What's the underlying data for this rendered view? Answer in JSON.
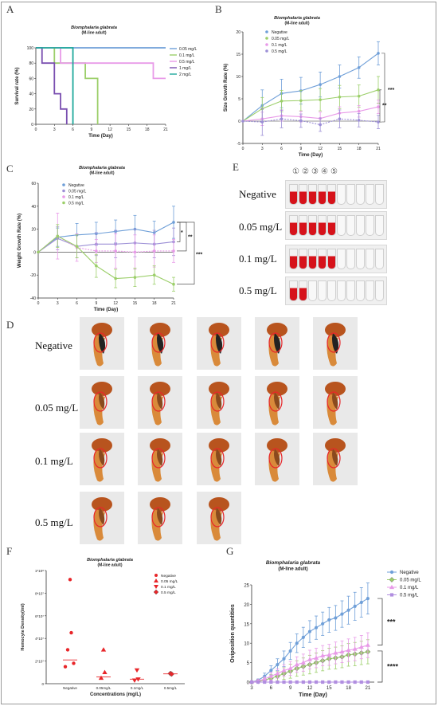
{
  "panels": {
    "A": {
      "letter": "A",
      "title": "Biomphalaria glabrata",
      "subtitle": "(M-line adult)"
    },
    "B": {
      "letter": "B",
      "title": "Biomphalaria glabrata",
      "subtitle": "(M-line adult)"
    },
    "C": {
      "letter": "C",
      "title": "Biomphalaria glabrata",
      "subtitle": "(M-line adult)"
    },
    "D": {
      "letter": "D",
      "rows": [
        "Negative",
        "0.05 mg/L",
        "0.1 mg/L",
        "0.5 mg/L"
      ]
    },
    "E": {
      "letter": "E",
      "rows": [
        "Negative",
        "0.05 mg/L",
        "0.1 mg/L",
        "0.5 mg/L"
      ],
      "tube_numbers": [
        "①",
        "②",
        "③",
        "④",
        "⑤"
      ]
    },
    "F": {
      "letter": "F",
      "title": "Biomphalaria glabrata",
      "subtitle": "(M-line adult)"
    },
    "G": {
      "letter": "G",
      "title": "Biomphalaria glabrata",
      "subtitle": "(M-line adult)"
    }
  },
  "colors": {
    "negative": "#6f9fd8",
    "c005": "#9ccf6a",
    "c01": "#e89ae8",
    "c05": "#9c8fd6",
    "red": "#e8262a",
    "teal": "#1fa89c",
    "blackish": "#333333"
  },
  "chart_data": [
    {
      "id": "A",
      "type": "line",
      "step": true,
      "xlabel": "Time (Day)",
      "ylabel": "Survival rate (%)",
      "xlim": [
        0,
        21
      ],
      "ylim": [
        0,
        100
      ],
      "xticks": [
        0,
        3,
        6,
        9,
        12,
        15,
        18,
        21
      ],
      "yticks": [
        0,
        20,
        40,
        60,
        80,
        100
      ],
      "legend": "right",
      "series": [
        {
          "name": "0.05 mg/L",
          "color": "#6f9fd8",
          "steps": [
            [
              0,
              100
            ],
            [
              21,
              100
            ]
          ]
        },
        {
          "name": "0.1 mg/L",
          "color": "#9ccf6a",
          "steps": [
            [
              0,
              100
            ],
            [
              3,
              100
            ],
            [
              3,
              80
            ],
            [
              8,
              80
            ],
            [
              8,
              60
            ],
            [
              10,
              60
            ],
            [
              10,
              0
            ]
          ]
        },
        {
          "name": "0.5 mg/L",
          "color": "#e89ae8",
          "steps": [
            [
              0,
              100
            ],
            [
              4,
              100
            ],
            [
              4,
              80
            ],
            [
              19,
              80
            ],
            [
              19,
              60
            ],
            [
              21,
              60
            ]
          ]
        },
        {
          "name": "1 mg/L",
          "color": "#7a4fb0",
          "steps": [
            [
              0,
              100
            ],
            [
              1,
              100
            ],
            [
              1,
              80
            ],
            [
              3,
              80
            ],
            [
              3,
              40
            ],
            [
              4,
              40
            ],
            [
              4,
              20
            ],
            [
              5,
              20
            ],
            [
              5,
              0
            ]
          ]
        },
        {
          "name": "2 mg/L",
          "color": "#1fa89c",
          "steps": [
            [
              0,
              100
            ],
            [
              6,
              100
            ],
            [
              6,
              0
            ]
          ]
        }
      ]
    },
    {
      "id": "B",
      "type": "line",
      "xlabel": "Time (Day)",
      "ylabel": "Size Growth Rate (%)",
      "xlim": [
        0,
        21
      ],
      "ylim": [
        -5,
        20
      ],
      "xticks": [
        0,
        3,
        6,
        9,
        12,
        15,
        18,
        21
      ],
      "yticks": [
        -5,
        0,
        5,
        10,
        15,
        20
      ],
      "legend": "top-left",
      "x": [
        0,
        3,
        6,
        9,
        12,
        15,
        18,
        21
      ],
      "series": [
        {
          "name": "Negative",
          "color": "#6f9fd8",
          "values": [
            0,
            3.5,
            6.2,
            6.8,
            8.2,
            10.0,
            12.0,
            15.2
          ],
          "err": [
            0,
            3.5,
            3.2,
            3.0,
            2.8,
            2.6,
            2.4,
            2.6
          ]
        },
        {
          "name": "0.05 mg/L",
          "color": "#9ccf6a",
          "values": [
            0,
            2.8,
            4.5,
            4.6,
            4.8,
            5.4,
            5.6,
            7.0
          ],
          "err": [
            0,
            2.5,
            2.4,
            2.3,
            2.5,
            2.6,
            2.5,
            3.0
          ]
        },
        {
          "name": "0.1 mg/L",
          "color": "#e89ae8",
          "values": [
            0,
            0.5,
            1.2,
            1.0,
            0.6,
            1.8,
            2.2,
            3.2
          ],
          "err": [
            0,
            1.5,
            1.2,
            1.2,
            1.4,
            1.4,
            1.3,
            1.5
          ]
        },
        {
          "name": "0.5 mg/L",
          "color": "#9c8fd6",
          "values": [
            0,
            -0.2,
            0.5,
            0.1,
            -0.8,
            0.5,
            0.2,
            -0.2
          ],
          "err": [
            0,
            3.0,
            2.0,
            1.5,
            1.5,
            2.0,
            1.5,
            1.5
          ]
        }
      ],
      "annotations": [
        "**",
        "***"
      ]
    },
    {
      "id": "C",
      "type": "line",
      "xlabel": "Time (Day)",
      "ylabel": "Weight Growth Rate (%)",
      "xlim": [
        0,
        21
      ],
      "ylim": [
        -40,
        60
      ],
      "xticks": [
        0,
        3,
        6,
        9,
        12,
        15,
        18,
        21
      ],
      "yticks": [
        -40,
        -20,
        0,
        20,
        40,
        60
      ],
      "legend": "top-left",
      "x": [
        0,
        3,
        6,
        9,
        12,
        15,
        18,
        21
      ],
      "series": [
        {
          "name": "Negative",
          "color": "#6f9fd8",
          "values": [
            0,
            13,
            15,
            16,
            18,
            20,
            17,
            26
          ],
          "err": [
            0,
            8,
            10,
            10,
            10,
            12,
            10,
            14
          ]
        },
        {
          "name": "0.05 mg/L",
          "color": "#9c8fd6",
          "values": [
            0,
            12,
            5,
            7,
            7,
            8,
            7,
            9
          ],
          "err": [
            0,
            10,
            10,
            10,
            12,
            12,
            12,
            12
          ]
        },
        {
          "name": "0.1 mg/L",
          "color": "#e89ae8",
          "values": [
            0,
            14,
            4,
            1,
            1,
            0,
            1,
            1
          ],
          "err": [
            0,
            20,
            12,
            10,
            15,
            15,
            14,
            10
          ]
        },
        {
          "name": "0.5 mg/L",
          "color": "#9ccf6a",
          "values": [
            0,
            14,
            5,
            -12,
            -23,
            -22,
            -20,
            -28
          ],
          "err": [
            0,
            10,
            10,
            10,
            8,
            8,
            8,
            6
          ]
        }
      ],
      "annotations": [
        "*",
        "**",
        "***"
      ]
    },
    {
      "id": "F",
      "type": "scatter",
      "xlabel": "Concentrations (mg/L)",
      "ylabel": "Hemocyte Density(/ml)",
      "categories": [
        "Negative",
        "0.05mg/L",
        "0.1mg/L",
        "0.5mg/L"
      ],
      "ylim": [
        0,
        100000000.0
      ],
      "yticks": [
        0,
        20000000.0,
        40000000.0,
        60000000.0,
        80000000.0,
        100000000.0
      ],
      "ytick_labels": [
        "0",
        "2*10⁷",
        "4*10⁷",
        "6*10⁷",
        "8*10⁷",
        "1*10⁸"
      ],
      "legend": "top-right",
      "series": [
        {
          "name": "Negative",
          "marker": "circle",
          "cat": 0,
          "points": [
            92000000.0,
            45000000.0,
            30000000.0,
            18000000.0,
            15000000.0
          ],
          "median": 21000000.0
        },
        {
          "name": "0.05 mg/L",
          "marker": "triangle-up",
          "cat": 1,
          "points": [
            30000000.0,
            10000000.0,
            5000000.0
          ],
          "median": 6000000.0
        },
        {
          "name": "0.1 mg/L",
          "marker": "triangle-down",
          "cat": 2,
          "points": [
            12000000.0,
            4000000.0,
            3000000.0
          ],
          "median": 4000000.0
        },
        {
          "name": "0.5 mg/L",
          "marker": "diamond",
          "cat": 3,
          "points": [
            9000000.0,
            8500000.0
          ],
          "median": 8700000.0
        }
      ]
    },
    {
      "id": "G",
      "type": "line",
      "xlabel": "Time (Day)",
      "ylabel": "Oviposition quantities",
      "xlim": [
        3,
        22
      ],
      "ylim": [
        0,
        25
      ],
      "xticks": [
        3,
        6,
        9,
        12,
        15,
        18,
        21
      ],
      "yticks": [
        0,
        5,
        10,
        15,
        20,
        25
      ],
      "legend": "top-right",
      "x": [
        3,
        4,
        5,
        6,
        7,
        8,
        9,
        10,
        11,
        12,
        13,
        14,
        15,
        16,
        17,
        18,
        19,
        20,
        21
      ],
      "series": [
        {
          "name": "Negative",
          "color": "#6f9fd8",
          "marker": "circle",
          "values": [
            0,
            0.5,
            1.5,
            3,
            4.5,
            6,
            8,
            10,
            11.5,
            13,
            14,
            15,
            16,
            16.5,
            17.5,
            18.5,
            19.5,
            20.5,
            21.5
          ],
          "err": [
            0,
            0.3,
            0.8,
            1.2,
            1.5,
            2,
            2.2,
            2.4,
            2.6,
            2.8,
            3,
            3,
            3.2,
            3.2,
            3.4,
            3.6,
            3.6,
            3.8,
            4
          ]
        },
        {
          "name": "0.05 mg/L",
          "color": "#9ccf6a",
          "marker": "diamond",
          "values": [
            0,
            0.2,
            0.5,
            1,
            1.5,
            2.2,
            2.8,
            3.5,
            4,
            4.5,
            5,
            5.5,
            6,
            6.2,
            6.5,
            7,
            7.2,
            7.5,
            7.8
          ],
          "err": [
            0,
            0.2,
            0.5,
            1,
            1.2,
            1.5,
            1.8,
            2,
            2.2,
            2.4,
            2.5,
            2.6,
            2.7,
            2.8,
            2.8,
            2.9,
            3,
            3,
            3.1
          ]
        },
        {
          "name": "0.1 mg/L",
          "color": "#e89ae8",
          "marker": "triangle-up",
          "values": [
            0,
            0.3,
            0.8,
            1.5,
            2.2,
            3,
            3.5,
            4.5,
            5,
            5.8,
            6.2,
            6.8,
            7,
            7.5,
            7.8,
            8.2,
            8.5,
            9,
            9.5
          ],
          "err": [
            0,
            0.3,
            0.6,
            1,
            1.2,
            1.5,
            1.8,
            2,
            2.2,
            2.4,
            2.5,
            2.6,
            2.7,
            2.8,
            2.8,
            2.9,
            3,
            3,
            3.2
          ]
        },
        {
          "name": "0.5 mg/L",
          "color": "#b18ee0",
          "marker": "square",
          "values": [
            0,
            0,
            0,
            0,
            0,
            0,
            0,
            0,
            0,
            0,
            0,
            0,
            0,
            0,
            0,
            0,
            0,
            0,
            0
          ],
          "err": [
            0,
            0,
            0,
            0,
            0,
            0,
            0,
            0,
            0,
            0,
            0,
            0,
            0,
            0,
            0,
            0,
            0,
            0,
            0
          ]
        }
      ],
      "annotations": [
        "***",
        "****"
      ]
    }
  ]
}
